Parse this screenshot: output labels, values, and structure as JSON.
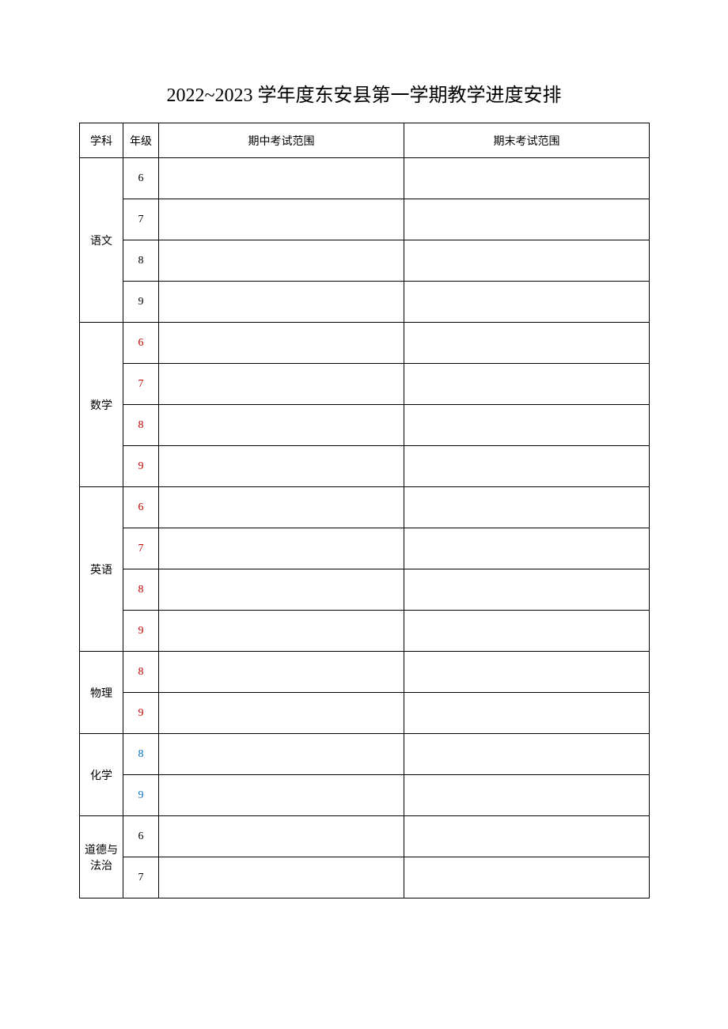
{
  "title": "2022~2023 学年度东安县第一学期教学进度安排",
  "headers": {
    "subject": "学科",
    "grade": "年级",
    "midterm": "期中考试范围",
    "final": "期末考试范围"
  },
  "subjects": [
    {
      "name": "语文",
      "color": "black",
      "grades": [
        {
          "num": "6",
          "color": "black",
          "midterm": "",
          "final": ""
        },
        {
          "num": "7",
          "color": "black",
          "midterm": "",
          "final": ""
        },
        {
          "num": "8",
          "color": "black",
          "midterm": "",
          "final": ""
        },
        {
          "num": "9",
          "color": "black",
          "midterm": "",
          "final": ""
        }
      ]
    },
    {
      "name": "数学",
      "color": "black",
      "grades": [
        {
          "num": "6",
          "color": "red",
          "midterm": "",
          "final": ""
        },
        {
          "num": "7",
          "color": "red",
          "midterm": "",
          "final": ""
        },
        {
          "num": "8",
          "color": "red",
          "midterm": "",
          "final": ""
        },
        {
          "num": "9",
          "color": "red",
          "midterm": "",
          "final": ""
        }
      ]
    },
    {
      "name": "英语",
      "color": "black",
      "grades": [
        {
          "num": "6",
          "color": "red",
          "midterm": "",
          "final": ""
        },
        {
          "num": "7",
          "color": "red",
          "midterm": "",
          "final": ""
        },
        {
          "num": "8",
          "color": "red",
          "midterm": "",
          "final": ""
        },
        {
          "num": "9",
          "color": "red",
          "midterm": "",
          "final": ""
        }
      ]
    },
    {
      "name": "物理",
      "color": "black",
      "grades": [
        {
          "num": "8",
          "color": "red",
          "midterm": "",
          "final": ""
        },
        {
          "num": "9",
          "color": "red",
          "midterm": "",
          "final": ""
        }
      ]
    },
    {
      "name": "化学",
      "color": "black",
      "grades": [
        {
          "num": "8",
          "color": "blue",
          "midterm": "",
          "final": ""
        },
        {
          "num": "9",
          "color": "blue",
          "midterm": "",
          "final": ""
        }
      ]
    },
    {
      "name": "道德与法治",
      "color": "black",
      "grades": [
        {
          "num": "6",
          "color": "black",
          "midterm": "",
          "final": ""
        },
        {
          "num": "7",
          "color": "black",
          "midterm": "",
          "final": ""
        }
      ]
    }
  ],
  "styling": {
    "background_color": "#ffffff",
    "border_color": "#000000",
    "text_color_black": "#000000",
    "text_color_red": "#c00000",
    "text_color_blue": "#0070c0",
    "title_fontsize": 24,
    "header_fontsize": 14,
    "cell_fontsize": 14,
    "header_row_height": 44,
    "data_row_height": 52,
    "col_widths": {
      "subject": 55,
      "grade": 45,
      "midterm": 310,
      "final": 310
    }
  }
}
